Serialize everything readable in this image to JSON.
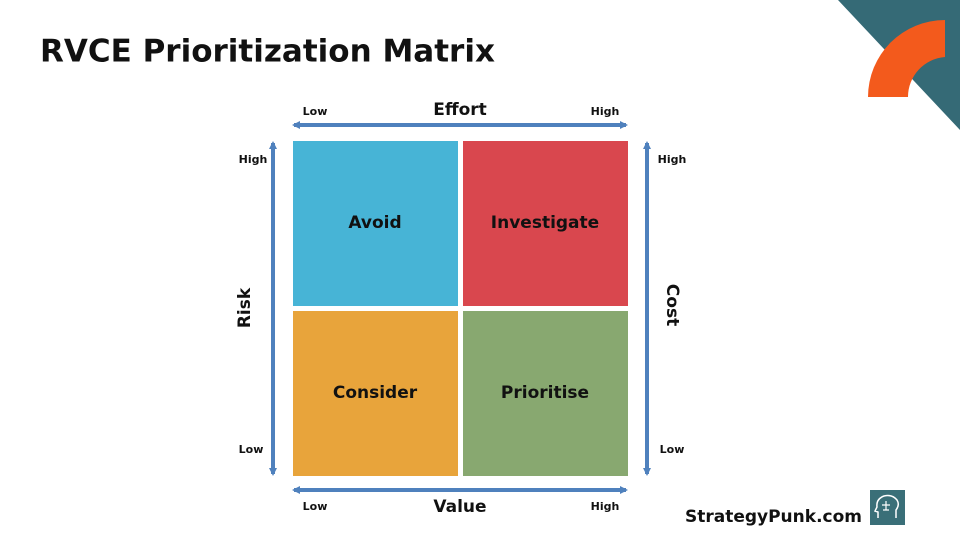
{
  "header": {
    "title": "RVCE Prioritization Matrix"
  },
  "axes": {
    "top": {
      "label": "Effort",
      "low": "Low",
      "high": "High"
    },
    "bottom": {
      "label": "Value",
      "low": "Low",
      "high": "High"
    },
    "left": {
      "label": "Risk",
      "low": "Low",
      "high": "High"
    },
    "right": {
      "label": "Cost",
      "low": "Low",
      "high": "High"
    }
  },
  "quadrants": [
    {
      "label": "Avoid"
    },
    {
      "label": "Investigate"
    },
    {
      "label": "Consider"
    },
    {
      "label": "Prioritise"
    }
  ],
  "footer": {
    "brand": "StrategyPunk.com"
  }
}
